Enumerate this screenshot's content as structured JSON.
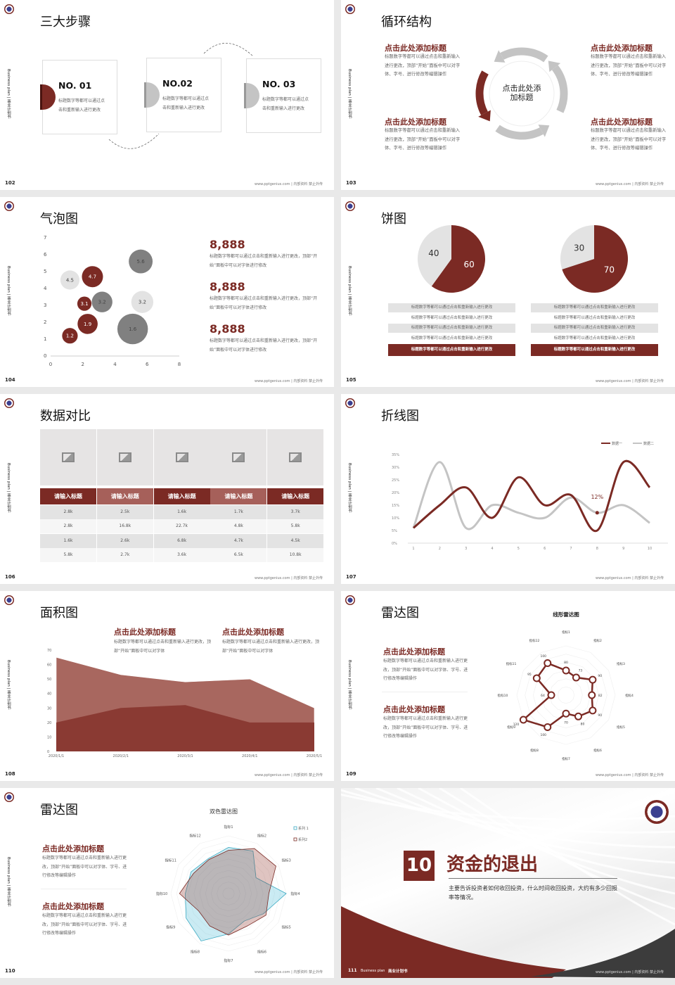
{
  "common": {
    "side_label": "Business plan | 商业计划书",
    "footer": "www.pptgenius.com | 内部资料 禁止外传",
    "colors": {
      "accent": "#7b2a24",
      "accent_light": "#a6605a",
      "gray": "#c4c4c4",
      "light": "#e3e3e3",
      "dark_gray": "#808080",
      "cyan": "#3aa9c2"
    }
  },
  "s102": {
    "page": "102",
    "title": "三大步骤",
    "cards": [
      {
        "no": "NO. 01",
        "body": "标题数字等都可以通过点击和重新输入进行更改"
      },
      {
        "no": "NO.02",
        "body": "标题数字等都可以通过点击和重新输入进行更改"
      },
      {
        "no": "NO. 03",
        "body": "标题数字等都可以通过点击和重新输入进行更改"
      }
    ]
  },
  "s103": {
    "page": "103",
    "title": "循环结构",
    "center": "点击此处添加标题",
    "items": [
      {
        "heading": "点击此处添加标题",
        "body": "标题数字等都可以通过点击和重新输入进行更改，顶部“开始”面板中可以对字体、字号、进行修改等编辑操作"
      },
      {
        "heading": "点击此处添加标题",
        "body": "标题数字等都可以通过点击和重新输入进行更改，顶部“开始”面板中可以对字体、字号、进行修改等编辑操作"
      },
      {
        "heading": "点击此处添加标题",
        "body": "标题数字等都可以通过点击和重新输入进行更改，顶部“开始”面板中可以对字体、字号、进行修改等编辑操作"
      },
      {
        "heading": "点击此处添加标题",
        "body": "标题数字等都可以通过点击和重新输入进行更改，顶部“开始”面板中可以对字体、字号、进行修改等编辑操作"
      }
    ]
  },
  "s104": {
    "page": "104",
    "title": "气泡图",
    "stats": [
      {
        "value": "8,888",
        "body": "标题数字等都可以通过点击和重新输入进行更改，顶部“开始”面板中可以对字体进行修改"
      },
      {
        "value": "8,888",
        "body": "标题数字等都可以通过点击和重新输入进行更改，顶部“开始”面板中可以对字体进行修改"
      },
      {
        "value": "8,888",
        "body": "标题数字等都可以通过点击和重新输入进行更改，顶部“开始”面板中可以对字体进行修改"
      }
    ]
  },
  "s105": {
    "page": "105",
    "title": "饼图",
    "rows_left": [
      "标题数字等都可以通过点击和重新输入进行更改",
      "标题数字等都可以通过点击和重新输入进行更改",
      "标题数字等都可以通过点击和重新输入进行更改",
      "标题数字等都可以通过点击和重新输入进行更改",
      "标题数字等都可以通过点击和重新输入进行更改"
    ],
    "rows_right": [
      "标题数字等都可以通过点击和重新输入进行更改",
      "标题数字等都可以通过点击和重新输入进行更改",
      "标题数字等都可以通过点击和重新输入进行更改",
      "标题数字等都可以通过点击和重新输入进行更改",
      "标题数字等都可以通过点击和重新输入进行更改"
    ]
  },
  "s106": {
    "page": "106",
    "title": "数据对比",
    "image_icon": "image-add-icon",
    "headers": [
      "请输入标题",
      "请输入标题",
      "请输入标题",
      "请输入标题",
      "请输入标题"
    ],
    "rows": [
      [
        "2.8k",
        "2.5k",
        "1.6k",
        "1.7k",
        "3.7k"
      ],
      [
        "2.8k",
        "16.8k",
        "22.7k",
        "4.8k",
        "5.8k"
      ],
      [
        "1.6k",
        "2.6k",
        "6.8k",
        "4.7k",
        "4.5k"
      ],
      [
        "5.8k",
        "2.7k",
        "3.6k",
        "6.5k",
        "10.8k"
      ]
    ]
  },
  "s107": {
    "page": "107",
    "title": "折线图"
  },
  "s108": {
    "page": "108",
    "title": "面积图",
    "items": [
      {
        "heading": "点击此处添加标题",
        "body": "标题数字等都可以通过点击和重新输入进行更改，顶部“开始”面板中可以对字体"
      },
      {
        "heading": "点击此处添加标题",
        "body": "标题数字等都可以通过点击和重新输入进行更改，顶部“开始”面板中可以对字体"
      }
    ]
  },
  "s109": {
    "page": "109",
    "title": "雷达图",
    "items": [
      {
        "heading": "点击此处添加标题",
        "body": "标题数字等都可以通过点击和重新输入进行更改，顶部“开始”面板中可以对字体、字号、进行修改等编辑操作"
      },
      {
        "heading": "点击此处添加标题",
        "body": "标题数字等都可以通过点击和重新输入进行更改，顶部“开始”面板中可以对字体、字号、进行修改等编辑操作"
      }
    ]
  },
  "s110": {
    "page": "110",
    "title": "雷达图",
    "items": [
      {
        "heading": "点击此处添加标题",
        "body": "标题数字等都可以通过点击和重新输入进行更改，顶部“开始”面板中可以对字体、字号、进行修改等编辑操作"
      },
      {
        "heading": "点击此处添加标题",
        "body": "标题数字等都可以通过点击和重新输入进行更改，顶部“开始”面板中可以对字体、字号、进行修改等编辑操作"
      }
    ]
  },
  "s111": {
    "page": "111",
    "number": "10",
    "title": "资金的退出",
    "subtitle": "主要告诉投资者如何收回投资，什么时间收回投资，大约有多少回报率等情况。",
    "brand_en": "Business plan",
    "brand_cn": "商业计划书"
  },
  "chart_data": [
    {
      "type": "scatter",
      "subtype": "bubble",
      "xlim": [
        0,
        8
      ],
      "ylim": [
        0,
        7
      ],
      "xticks": [
        "0",
        "2",
        "4",
        "6",
        "8"
      ],
      "yticks": [
        "0",
        "1",
        "2",
        "3",
        "4",
        "5",
        "6",
        "7"
      ],
      "points": [
        {
          "x": 1.2,
          "y": 1.2,
          "size": 12,
          "label": "1.2",
          "color": "accent"
        },
        {
          "x": 2.3,
          "y": 1.9,
          "size": 20,
          "label": "1.9",
          "color": "accent"
        },
        {
          "x": 2.1,
          "y": 3.1,
          "size": 10,
          "label": "3.1",
          "color": "accent"
        },
        {
          "x": 2.6,
          "y": 4.7,
          "size": 22,
          "label": "4.7",
          "color": "accent"
        },
        {
          "x": 1.2,
          "y": 4.5,
          "size": 18,
          "label": "4.5",
          "color": "light"
        },
        {
          "x": 3.2,
          "y": 3.2,
          "size": 21,
          "label": "3.2",
          "color": "dark_gray"
        },
        {
          "x": 5.7,
          "y": 3.2,
          "size": 24,
          "label": "3.2",
          "color": "light"
        },
        {
          "x": 5.1,
          "y": 1.6,
          "size": 46,
          "label": "1.6",
          "color": "dark_gray"
        },
        {
          "x": 5.6,
          "y": 5.6,
          "size": 28,
          "label": "5.6",
          "color": "dark_gray"
        }
      ]
    },
    {
      "type": "pie",
      "values": [
        60,
        40
      ],
      "labels": [
        "60",
        "40"
      ]
    },
    {
      "type": "pie",
      "values": [
        70,
        30
      ],
      "labels": [
        "70",
        "30"
      ]
    },
    {
      "type": "line",
      "x": [
        1,
        2,
        3,
        4,
        5,
        6,
        7,
        8,
        9,
        10
      ],
      "xticks": [
        "1",
        "2",
        "3",
        "4",
        "5",
        "6",
        "7",
        "8",
        "9",
        "10"
      ],
      "ylim": [
        0,
        35
      ],
      "yticks": [
        "0%",
        "5%",
        "10%",
        "15%",
        "20%",
        "25%",
        "30%",
        "35%"
      ],
      "legend": "top-right",
      "series": [
        {
          "name": "数据一",
          "values": [
            6,
            15,
            22,
            10,
            26,
            15,
            19,
            5,
            32,
            22
          ]
        },
        {
          "name": "数据二",
          "values": [
            6,
            32,
            6,
            15,
            12,
            10,
            18,
            12,
            15,
            8
          ]
        }
      ],
      "annotation": {
        "text": "12%",
        "x": 8,
        "y": 12
      }
    },
    {
      "type": "area",
      "categories": [
        "2020/1/1",
        "2020/2/1",
        "2020/3/1",
        "2020/4/1",
        "2020/5/1"
      ],
      "ylim": [
        0,
        70
      ],
      "yticks": [
        "0",
        "10",
        "20",
        "30",
        "40",
        "50",
        "60",
        "70"
      ],
      "series": [
        {
          "values": [
            65,
            53,
            48,
            50,
            30
          ]
        },
        {
          "values": [
            20,
            30,
            32,
            20,
            20
          ]
        }
      ]
    },
    {
      "type": "radar",
      "title": "线形雷达图",
      "axes": [
        "指标1",
        "指标2",
        "指标3",
        "指标4",
        "指标5",
        "指标6",
        "指标7",
        "指标8",
        "指标9",
        "指标10",
        "指标11",
        "指标12"
      ],
      "range": [
        40,
        120
      ],
      "values": [
        80,
        73,
        90,
        82,
        90,
        80,
        70,
        100,
        120,
        64,
        95,
        100
      ],
      "value_labels": [
        "80",
        "73",
        "90",
        "82",
        "90",
        "80",
        "70",
        "100",
        "120",
        "64",
        "95",
        "100"
      ]
    },
    {
      "type": "radar",
      "title": "双色雷达图",
      "axes": [
        "指标1",
        "指标2",
        "指标3",
        "指标4",
        "指标5",
        "指标6",
        "指标7",
        "指标8",
        "指标9",
        "指标10",
        "指标11",
        "指标12"
      ],
      "range": [
        0,
        100
      ],
      "legend": "top-right",
      "series": [
        {
          "name": "系列 1",
          "color": "cyan",
          "values": [
            80,
            85,
            55,
            100,
            70,
            55,
            70,
            95,
            85,
            75,
            75,
            70
          ]
        },
        {
          "name": "系列2",
          "color": "accent",
          "values": [
            75,
            90,
            95,
            70,
            75,
            65,
            72,
            65,
            60,
            85,
            70,
            68
          ]
        }
      ]
    }
  ]
}
